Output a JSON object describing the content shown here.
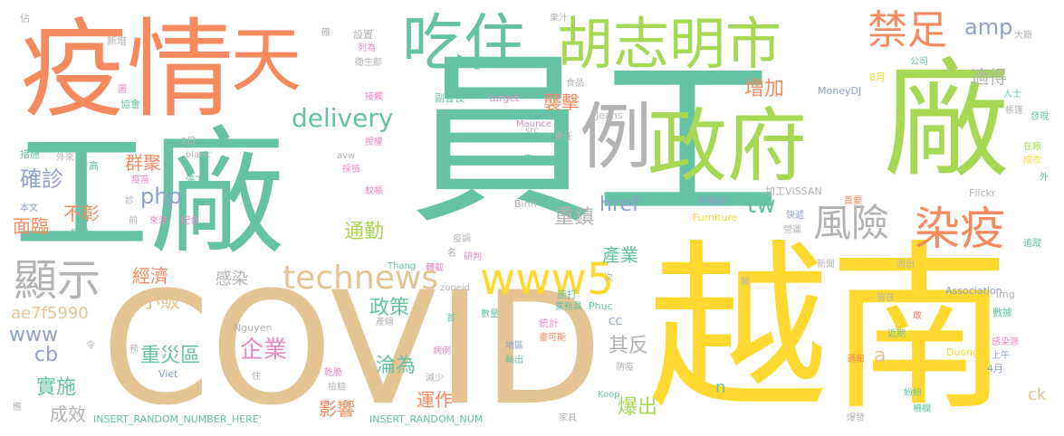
{
  "palette": {
    "orange": "#f58a5e",
    "green": "#66c2a5",
    "lime": "#a6d854",
    "pink": "#e78ac3",
    "yellow": "#ffd92f",
    "tan": "#e5c494",
    "blue": "#8da0cb",
    "gray": "#b3b3b3"
  },
  "words": [
    {
      "text": "疫情",
      "color": "orange"
    },
    {
      "text": "天",
      "color": "orange"
    },
    {
      "text": "吃住",
      "color": "green"
    },
    {
      "text": "胡志明市",
      "color": "lime"
    },
    {
      "text": "禁足",
      "color": "orange"
    },
    {
      "text": "工廠",
      "color": "green"
    },
    {
      "text": "員工",
      "color": "green"
    },
    {
      "text": "廠",
      "color": "lime"
    },
    {
      "text": "例",
      "color": "gray"
    },
    {
      "text": "政府",
      "color": "lime"
    },
    {
      "text": "COVID",
      "color": "tan"
    },
    {
      "text": "越南",
      "color": "yellow"
    },
    {
      "text": "amp",
      "color": "blue"
    },
    {
      "text": "適得",
      "color": "gray"
    },
    {
      "text": "delivery",
      "color": "green"
    },
    {
      "text": "風險",
      "color": "gray"
    },
    {
      "text": "染疫",
      "color": "orange"
    },
    {
      "text": "顯示",
      "color": "gray"
    },
    {
      "text": "technews",
      "color": "tan"
    },
    {
      "text": "www5",
      "color": "yellow"
    },
    {
      "text": "tw",
      "color": "green"
    },
    {
      "text": "php",
      "color": "blue"
    },
    {
      "text": "確診",
      "color": "blue"
    },
    {
      "text": "群聚",
      "color": "orange"
    },
    {
      "text": "不彰",
      "color": "orange"
    },
    {
      "text": "面臨",
      "color": "orange"
    },
    {
      "text": "增加",
      "color": "orange"
    },
    {
      "text": "襲擊",
      "color": "orange"
    },
    {
      "text": "通勤",
      "color": "lime"
    },
    {
      "text": "重鎮",
      "color": "gray"
    },
    {
      "text": "href",
      "color": "blue"
    },
    {
      "text": "產業",
      "color": "green"
    },
    {
      "text": "經濟",
      "color": "orange"
    },
    {
      "text": "感染",
      "color": "gray"
    },
    {
      "text": "政策",
      "color": "green"
    },
    {
      "text": "小販",
      "color": "tan"
    },
    {
      "text": "重災區",
      "color": "green"
    },
    {
      "text": "企業",
      "color": "pink"
    },
    {
      "text": "其反",
      "color": "gray"
    },
    {
      "text": "淪為",
      "color": "green"
    },
    {
      "text": "www",
      "color": "blue"
    },
    {
      "text": "ae7f5990",
      "color": "tan"
    },
    {
      "text": "cb",
      "color": "blue"
    },
    {
      "text": "實施",
      "color": "green"
    },
    {
      "text": "成效",
      "color": "gray"
    },
    {
      "text": "影響",
      "color": "orange"
    },
    {
      "text": "運作",
      "color": "orange"
    },
    {
      "text": "爆出",
      "color": "lime"
    },
    {
      "text": "a",
      "color": "tan"
    },
    {
      "text": "n",
      "color": "green"
    },
    {
      "text": "ck",
      "color": "tan"
    },
    {
      "text": "INSERT_RANDOM_NUMBER_HERE'",
      "color": "green"
    },
    {
      "text": "INSERT_RANDOM_NUM",
      "color": "green"
    },
    {
      "text": "Nguyen",
      "color": "gray"
    },
    {
      "text": "Viet",
      "color": "blue"
    },
    {
      "text": "zoneid",
      "color": "gray"
    },
    {
      "text": "Thang",
      "color": "green"
    },
    {
      "text": "Phuc",
      "color": "green"
    },
    {
      "text": "Koop",
      "color": "green"
    },
    {
      "text": "Binh",
      "color": "gray"
    },
    {
      "text": "Furniture",
      "color": "yellow"
    },
    {
      "text": "Duong",
      "color": "yellow"
    },
    {
      "text": "Association",
      "color": "blue"
    },
    {
      "text": "img",
      "color": "gray"
    },
    {
      "text": "Flickr",
      "color": "gray"
    },
    {
      "text": "MoneyDJ",
      "color": "blue"
    },
    {
      "text": "Jeans",
      "color": "gray"
    },
    {
      "text": "src",
      "color": "gray"
    },
    {
      "text": "Maunce",
      "color": "pink"
    },
    {
      "text": "target",
      "color": "pink"
    },
    {
      "text": "avw",
      "color": "gray"
    },
    {
      "text": "_blank'",
      "color": "gray"
    },
    {
      "text": "加工VISSAN",
      "color": "gray"
    },
    {
      "text": "2日",
      "color": "gray"
    },
    {
      "text": "8月",
      "color": "yellow"
    },
    {
      "text": "4月",
      "color": "blue"
    },
    {
      "text": "CC",
      "color": "blue"
    },
    {
      "text": "佔",
      "color": "gray"
    },
    {
      "text": "新增",
      "color": "gray"
    },
    {
      "text": "協會",
      "color": "green"
    },
    {
      "text": "措施",
      "color": "green"
    },
    {
      "text": "高",
      "color": "green"
    },
    {
      "text": "外來",
      "color": "gray"
    },
    {
      "text": "疫苗",
      "color": "pink"
    },
    {
      "text": "停工",
      "color": "green"
    },
    {
      "text": "本文",
      "color": "blue"
    },
    {
      "text": "模式",
      "color": "green"
    },
    {
      "text": "診",
      "color": "gray"
    },
    {
      "text": "前",
      "color": "gray"
    },
    {
      "text": "來源",
      "color": "pink"
    },
    {
      "text": "配合",
      "color": "pink"
    },
    {
      "text": "設置",
      "color": "gray"
    },
    {
      "text": "列為",
      "color": "pink"
    },
    {
      "text": "衛生部",
      "color": "gray"
    },
    {
      "text": "確",
      "color": "gray"
    },
    {
      "text": "圖",
      "color": "pink"
    },
    {
      "text": "接觸",
      "color": "pink"
    },
    {
      "text": "副會長",
      "color": "green"
    },
    {
      "text": "授權",
      "color": "pink"
    },
    {
      "text": "採檢",
      "color": "pink"
    },
    {
      "text": "蚊帳",
      "color": "pink"
    },
    {
      "text": "果汁",
      "color": "gray"
    },
    {
      "text": "食品",
      "color": "gray"
    },
    {
      "text": "責任",
      "color": "gray"
    },
    {
      "text": "底",
      "color": "green"
    },
    {
      "text": "購買",
      "color": "green"
    },
    {
      "text": "平陽省",
      "color": "blue"
    },
    {
      "text": "快遞",
      "color": "blue"
    },
    {
      "text": "營運",
      "color": "gray"
    },
    {
      "text": "首要",
      "color": "orange"
    },
    {
      "text": "大廠",
      "color": "gray"
    },
    {
      "text": "公司",
      "color": "green"
    },
    {
      "text": "人士",
      "color": "green"
    },
    {
      "text": "帳篷",
      "color": "gray"
    },
    {
      "text": "發現",
      "color": "green"
    },
    {
      "text": "在廠",
      "color": "lime"
    },
    {
      "text": "成衣",
      "color": "yellow"
    },
    {
      "text": "外",
      "color": "green"
    },
    {
      "text": "新聞",
      "color": "gray"
    },
    {
      "text": "隔",
      "color": "gray"
    },
    {
      "text": "測出",
      "color": "gray"
    },
    {
      "text": "追蹤",
      "color": "green"
    },
    {
      "text": "留在",
      "color": "gray"
    },
    {
      "text": "施打",
      "color": "green"
    },
    {
      "text": "次",
      "color": "gray"
    },
    {
      "text": "數據",
      "color": "green"
    },
    {
      "text": "敢",
      "color": "orange"
    },
    {
      "text": "近期",
      "color": "green"
    },
    {
      "text": "感染源",
      "color": "pink"
    },
    {
      "text": "上午",
      "color": "blue"
    },
    {
      "text": "通報",
      "color": "orange"
    },
    {
      "text": "紛紛",
      "color": "green"
    },
    {
      "text": "柵欄",
      "color": "green"
    },
    {
      "text": "爆發",
      "color": "gray"
    },
    {
      "text": "疫調",
      "color": "gray"
    },
    {
      "text": "名",
      "color": "gray"
    },
    {
      "text": "研判",
      "color": "pink"
    },
    {
      "text": "轉載",
      "color": "pink"
    },
    {
      "text": "業務員",
      "color": "green"
    },
    {
      "text": "統計",
      "color": "pink"
    },
    {
      "text": "畫可能",
      "color": "orange"
    },
    {
      "text": "數量",
      "color": "green"
    },
    {
      "text": "首",
      "color": "green"
    },
    {
      "text": "產線",
      "color": "gray"
    },
    {
      "text": "病例",
      "color": "pink"
    },
    {
      "text": "地區",
      "color": "blue"
    },
    {
      "text": "輸出",
      "color": "green"
    },
    {
      "text": "防疫",
      "color": "gray"
    },
    {
      "text": "減少",
      "color": "gray"
    },
    {
      "text": "乾脆",
      "color": "pink"
    },
    {
      "text": "檢驗",
      "color": "gray"
    },
    {
      "text": "住",
      "color": "gray"
    },
    {
      "text": "令",
      "color": "gray"
    },
    {
      "text": "務",
      "color": "gray"
    },
    {
      "text": "家具",
      "color": "gray"
    },
    {
      "text": "應",
      "color": "gray"
    }
  ]
}
